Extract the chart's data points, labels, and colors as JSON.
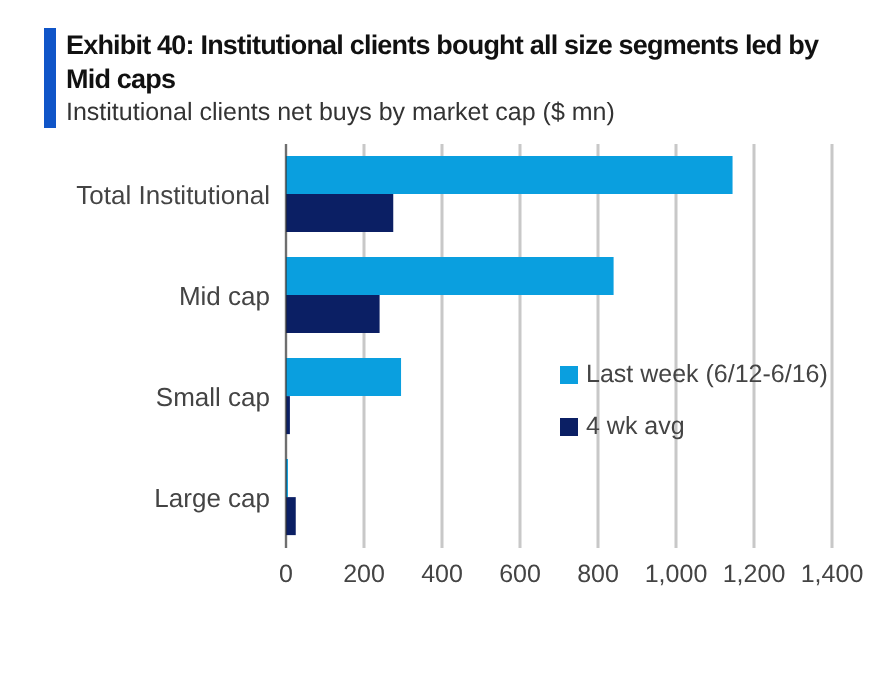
{
  "chart_data": {
    "type": "bar",
    "orientation": "horizontal",
    "title": "Exhibit 40: Institutional clients bought all size segments led by Mid caps",
    "subtitle": "Institutional clients net buys by market cap ($ mn)",
    "categories": [
      "Total Institutional",
      "Mid cap",
      "Small cap",
      "Large cap"
    ],
    "series": [
      {
        "name": "Last week (6/12-6/16)",
        "color": "#0a9fdf",
        "values": [
          1145,
          840,
          295,
          5
        ]
      },
      {
        "name": "4 wk avg",
        "color": "#0b1f64",
        "values": [
          275,
          240,
          10,
          25
        ]
      }
    ],
    "xlim": [
      0,
      1400
    ],
    "xticks": [
      0,
      {
        "value": 200,
        "label": "200"
      },
      {
        "value": 400,
        "label": "400"
      },
      {
        "value": 600,
        "label": "600"
      },
      {
        "value": 800,
        "label": "800"
      },
      {
        "value": 1000,
        "label": "1,000"
      },
      {
        "value": 1200,
        "label": "1,200"
      },
      {
        "value": 1400,
        "label": "1,400"
      }
    ],
    "grid": "x",
    "legend": "right"
  }
}
